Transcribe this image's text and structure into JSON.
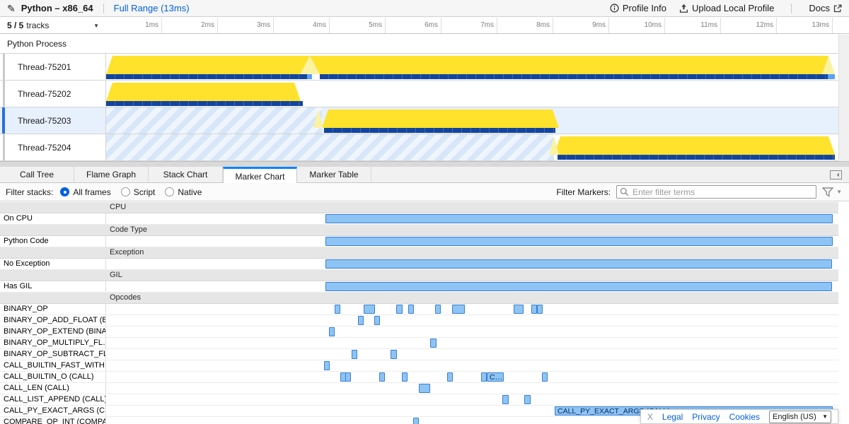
{
  "colors": {
    "accent_blue": "#0a84ff",
    "link_blue": "#0060df",
    "cpu_yellow": "#ffe22b",
    "cpu_yellow_light": "#fbf2a2",
    "samples_blue": "#12459e",
    "samples_blue_light": "#57a1f6",
    "marker_fill": "#8dc4f5",
    "marker_border": "#3a7ed2",
    "selected_row": "#e7f0fd"
  },
  "top_bar": {
    "profile_name": "Python – x86_64",
    "full_range_label": "Full Range (13ms)",
    "profile_info_label": "Profile Info",
    "upload_label": "Upload Local Profile",
    "docs_label": "Docs"
  },
  "timeline": {
    "tracks_summary": "5 / 5",
    "tracks_word": "tracks",
    "ruler_ticks": [
      "1ms",
      "2ms",
      "3ms",
      "4ms",
      "5ms",
      "6ms",
      "7ms",
      "8ms",
      "9ms",
      "10ms",
      "11ms",
      "12ms",
      "13ms"
    ],
    "process_label": "Python Process",
    "threads": [
      {
        "name": "Thread-75201",
        "selected": false,
        "yellow": [
          [
            150,
            1030
          ]
        ],
        "peaks": [
          [
            424,
            28
          ],
          [
            1162,
            18
          ]
        ],
        "bar_dark": [
          [
            150,
            284
          ],
          [
            452,
            718
          ]
        ],
        "bar_light": [
          [
            434,
            7
          ],
          [
            1170,
            10
          ]
        ]
      },
      {
        "name": "Thread-75202",
        "selected": false,
        "yellow": [
          [
            150,
            275
          ]
        ],
        "bar_dark": [
          [
            150,
            278
          ]
        ]
      },
      {
        "name": "Thread-75203",
        "selected": true,
        "stripes": [
          [
            150,
            305
          ]
        ],
        "peaks": [
          [
            443,
            14
          ]
        ],
        "yellow": [
          [
            455,
            335
          ]
        ],
        "bar_dark": [
          [
            458,
            327
          ]
        ]
      },
      {
        "name": "Thread-75204",
        "selected": false,
        "stripes": [
          [
            150,
            633
          ]
        ],
        "peaks": [
          [
            776,
            14
          ]
        ],
        "yellow": [
          [
            783,
            397
          ]
        ],
        "bar_dark": [
          [
            788,
            392
          ]
        ]
      }
    ]
  },
  "tabs": {
    "items": [
      "Call Tree",
      "Flame Graph",
      "Stack Chart",
      "Marker Chart",
      "Marker Table"
    ],
    "active": "Marker Chart"
  },
  "filter_bar": {
    "stacks_label": "Filter stacks:",
    "options": [
      {
        "label": "All frames",
        "selected": true
      },
      {
        "label": "Script",
        "selected": false
      },
      {
        "label": "Native",
        "selected": false
      }
    ],
    "markers_label": "Filter Markers:",
    "search_placeholder": "Enter filter terms"
  },
  "marker_chart": {
    "rows": [
      {
        "type": "header",
        "label": "CPU"
      },
      {
        "type": "row",
        "label": "On CPU",
        "markers": [
          [
            460,
            717
          ]
        ]
      },
      {
        "type": "header",
        "label": "Code Type"
      },
      {
        "type": "row",
        "label": "Python Code",
        "markers": [
          [
            460,
            717
          ]
        ]
      },
      {
        "type": "header",
        "label": "Exception"
      },
      {
        "type": "row",
        "label": "No Exception",
        "markers": [
          [
            460,
            716
          ]
        ]
      },
      {
        "type": "header",
        "label": "GIL"
      },
      {
        "type": "row",
        "label": "Has GIL",
        "markers": [
          [
            460,
            716
          ]
        ]
      },
      {
        "type": "header",
        "label": "Opcodes"
      },
      {
        "type": "row",
        "label": "BINARY_OP",
        "markers": [
          [
            473,
            8
          ],
          [
            514,
            16
          ],
          [
            560,
            9
          ],
          [
            577,
            8
          ],
          [
            615,
            8
          ],
          [
            639,
            18
          ],
          [
            726,
            14
          ],
          [
            751,
            8
          ],
          [
            759,
            8
          ]
        ]
      },
      {
        "type": "row",
        "label": "BINARY_OP_ADD_FLOAT (B…",
        "markers": [
          [
            506,
            8
          ],
          [
            529,
            8
          ]
        ]
      },
      {
        "type": "row",
        "label": "BINARY_OP_EXTEND (BINA…",
        "markers": [
          [
            465,
            8
          ]
        ]
      },
      {
        "type": "row",
        "label": "BINARY_OP_MULTIPLY_FL…",
        "markers": [
          [
            608,
            9
          ]
        ]
      },
      {
        "type": "row",
        "label": "BINARY_OP_SUBTRACT_FL…",
        "markers": [
          [
            497,
            8
          ],
          [
            552,
            9
          ]
        ]
      },
      {
        "type": "row",
        "label": "CALL_BUILTIN_FAST_WITH…",
        "markers": [
          [
            458,
            8
          ]
        ]
      },
      {
        "type": "row",
        "label": "CALL_BUILTIN_O (CALL)",
        "markers": [
          [
            481,
            8
          ],
          [
            488,
            8
          ],
          [
            536,
            8
          ],
          [
            568,
            8
          ],
          [
            632,
            8
          ],
          [
            680,
            8
          ],
          [
            688,
            24,
            "C…"
          ],
          [
            766,
            8
          ]
        ]
      },
      {
        "type": "row",
        "label": "CALL_LEN (CALL)",
        "markers": [
          [
            592,
            16
          ]
        ]
      },
      {
        "type": "row",
        "label": "CALL_LIST_APPEND (CALL)",
        "markers": [
          [
            710,
            9
          ],
          [
            741,
            9
          ]
        ]
      },
      {
        "type": "row",
        "label": "CALL_PY_EXACT_ARGS (C…",
        "markers": [
          [
            784,
            393,
            "CALL_PY_EXACT_ARGS (CALL)"
          ]
        ]
      },
      {
        "type": "row",
        "label": "COMPARE_OP_INT (COMPA…",
        "markers": [
          [
            584,
            8
          ]
        ]
      }
    ]
  },
  "footer": {
    "close": "X",
    "legal": "Legal",
    "privacy": "Privacy",
    "cookies": "Cookies",
    "language": "English (US)"
  }
}
